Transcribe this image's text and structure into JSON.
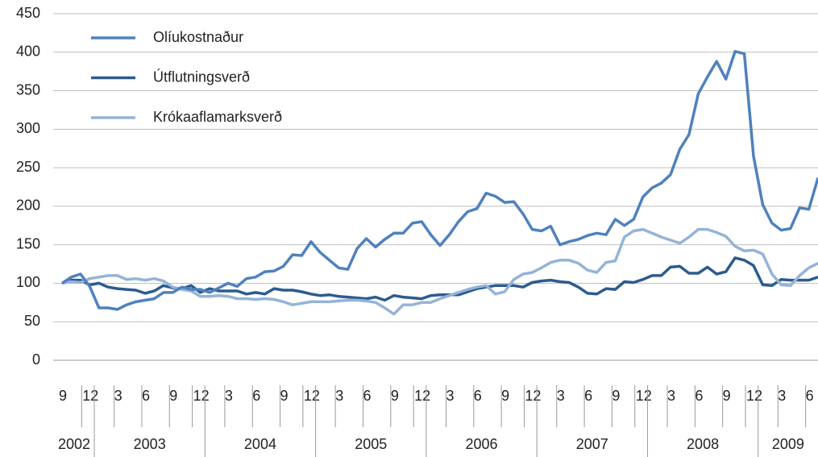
{
  "chart_data": {
    "type": "line",
    "categories": [
      "9",
      null,
      null,
      "12",
      null,
      null,
      "3",
      null,
      null,
      "6",
      null,
      null,
      "9",
      null,
      null,
      "12",
      null,
      null,
      "3",
      null,
      null,
      "6",
      null,
      null,
      "9",
      null,
      null,
      "12",
      null,
      null,
      "3",
      null,
      null,
      "6",
      null,
      null,
      "9",
      null,
      null,
      "12",
      null,
      null,
      "3",
      null,
      null,
      "6",
      null,
      null,
      "9",
      null,
      null,
      "12",
      null,
      null,
      "3",
      null,
      null,
      "6",
      null,
      null,
      "9",
      null,
      null,
      "12",
      null,
      null,
      "3",
      null,
      null,
      "6",
      null,
      null,
      "9",
      null,
      null,
      "12",
      null,
      null,
      "3",
      null,
      null,
      "6",
      null
    ],
    "year_labels": [
      "2002",
      "2003",
      "2004",
      "2005",
      "2006",
      "2007",
      "2008",
      "2009"
    ],
    "series": [
      {
        "name": "Olíukostnaður",
        "color": "#4f81bd",
        "values": [
          100,
          108,
          112,
          96,
          68,
          68,
          66,
          72,
          76,
          78,
          80,
          88,
          88,
          95,
          92,
          92,
          88,
          94,
          100,
          96,
          106,
          108,
          115,
          116,
          122,
          137,
          136,
          154,
          140,
          130,
          120,
          118,
          145,
          158,
          147,
          157,
          165,
          165,
          178,
          180,
          163,
          149,
          163,
          180,
          193,
          197,
          217,
          213,
          205,
          206,
          190,
          170,
          168,
          174,
          150,
          154,
          157,
          162,
          165,
          163,
          183,
          175,
          183,
          212,
          224,
          230,
          241,
          274,
          293,
          346,
          368,
          388,
          365,
          401,
          398,
          265,
          202,
          178,
          169,
          171,
          198,
          196,
          237
        ]
      },
      {
        "name": "Útflutningsverð",
        "color": "#2c5b8f",
        "values": [
          100,
          104,
          104,
          98,
          100,
          95,
          93,
          92,
          91,
          87,
          90,
          97,
          94,
          93,
          97,
          88,
          93,
          90,
          90,
          90,
          86,
          88,
          86,
          93,
          91,
          91,
          89,
          86,
          84,
          85,
          83,
          82,
          81,
          80,
          82,
          78,
          84,
          82,
          81,
          80,
          84,
          85,
          85,
          85,
          89,
          93,
          95,
          97,
          97,
          97,
          95,
          101,
          103,
          104,
          102,
          101,
          95,
          87,
          86,
          93,
          92,
          102,
          101,
          105,
          110,
          110,
          121,
          122,
          113,
          113,
          121,
          112,
          115,
          133,
          130,
          123,
          98,
          97,
          105,
          104,
          104,
          104,
          108
        ]
      },
      {
        "name": "Krókaaflamarksverð",
        "color": "#95b3d7",
        "values": [
          100,
          102,
          101,
          106,
          108,
          110,
          110,
          105,
          106,
          104,
          106,
          103,
          95,
          92,
          90,
          83,
          83,
          84,
          83,
          80,
          80,
          79,
          80,
          79,
          76,
          72,
          74,
          76,
          76,
          76,
          77,
          78,
          78,
          77,
          75,
          68,
          60,
          72,
          72,
          75,
          75,
          80,
          84,
          88,
          92,
          95,
          97,
          86,
          89,
          105,
          112,
          114,
          120,
          127,
          130,
          130,
          126,
          117,
          114,
          127,
          129,
          160,
          168,
          170,
          165,
          160,
          156,
          152,
          160,
          170,
          170,
          166,
          161,
          148,
          142,
          143,
          138,
          112,
          98,
          97,
          110,
          120,
          126
        ]
      }
    ],
    "ylim": [
      0,
      450
    ],
    "yticks": [
      0,
      50,
      100,
      150,
      200,
      250,
      300,
      350,
      400,
      450
    ],
    "grid": true,
    "legend": "top-left"
  }
}
